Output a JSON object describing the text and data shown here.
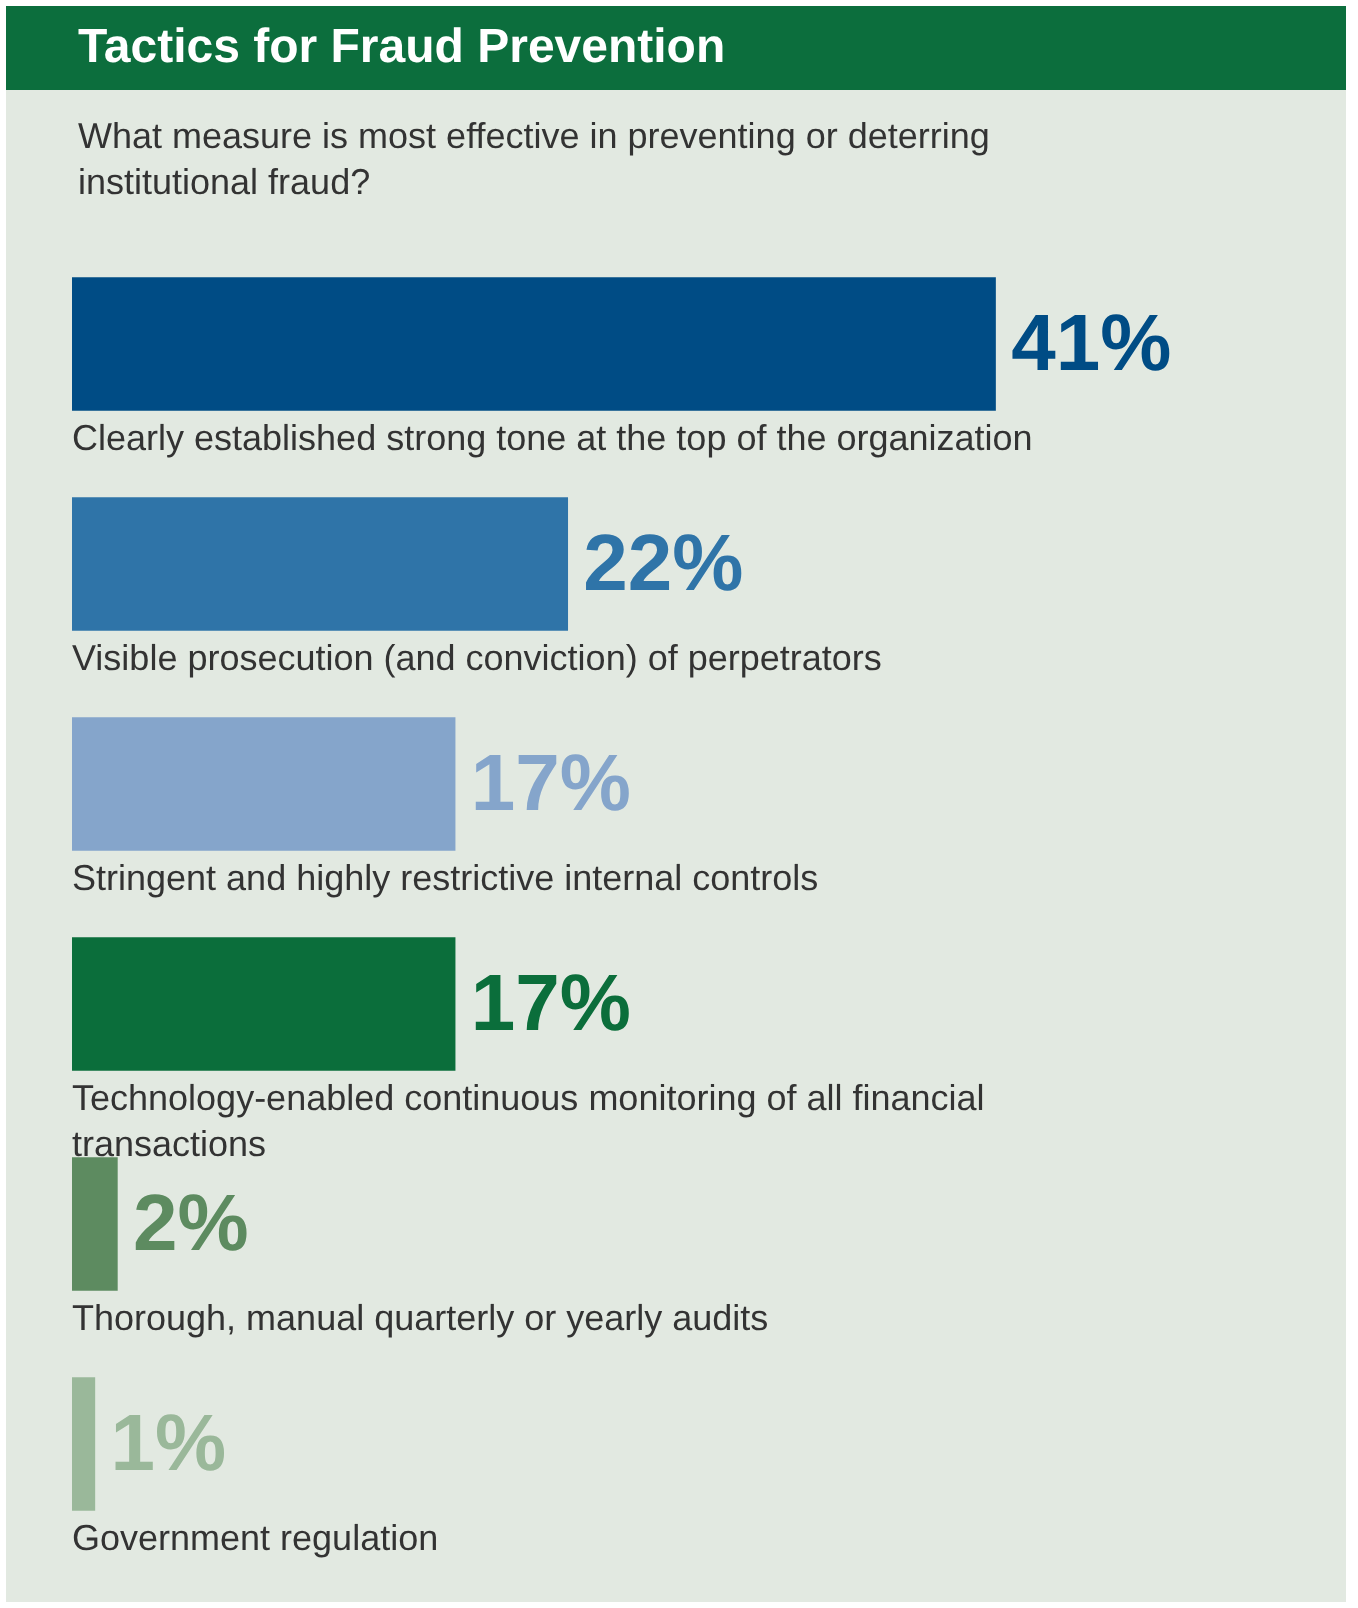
{
  "chart_data": {
    "type": "bar",
    "orientation": "horizontal",
    "title": "Tactics for Fraud Prevention",
    "subtitle": "What measure is most effective in preventing or deterring institutional fraud?",
    "categories": [
      "Clearly established strong tone at the top of the organization",
      "Visible prosecution (and conviction) of perpetrators",
      "Stringent and highly restrictive internal controls",
      "Technology-enabled continuous monitoring of all financial transactions",
      "Thorough, manual quarterly or yearly audits",
      "Government regulation"
    ],
    "values": [
      41,
      22,
      17,
      17,
      2,
      1
    ],
    "colors": [
      "#004c85",
      "#2f74a8",
      "#85a5cb",
      "#0b6e3b",
      "#5d8b60",
      "#9ab89a"
    ],
    "value_labels": [
      "41%",
      "22%",
      "17%",
      "17%",
      "2%",
      "1%"
    ],
    "tick_labels": false,
    "legend": false
  }
}
